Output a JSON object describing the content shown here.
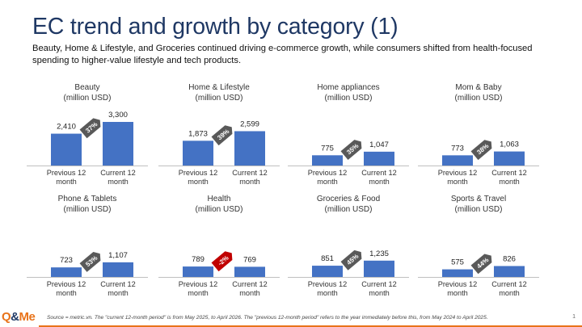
{
  "title": "EC trend and growth by category (1)",
  "subtitle": "Beauty, Home & Lifestyle, and Groceries continued driving e-commerce growth, while consumers shifted from health-focused spending to higher-value lifestyle and tech products.",
  "footer": {
    "logo_left": "Q",
    "logo_amp": "&",
    "logo_right": "Me",
    "source": "Source = metric.vn. The \"current 12-month period\" is from May 2025, to April 2026. The \"previous 12-month period\" refers to the year immediately before this, from May 2024 to April 2025.",
    "page_number": "1"
  },
  "colors": {
    "bar": "#4472c4",
    "badge": "#595959",
    "badge_negative": "#c00000",
    "title": "#1f3864",
    "accent": "#e8731a"
  },
  "chart_data": [
    {
      "type": "bar",
      "title": "Beauty\n(million USD)",
      "categories": [
        "Previous 12\nmonth",
        "Current 12\nmonth"
      ],
      "values": [
        2410,
        3300
      ],
      "labels": [
        "2,410",
        "3,300"
      ],
      "growth": "37%"
    },
    {
      "type": "bar",
      "title": "Home & Lifestyle\n(million USD)",
      "categories": [
        "Previous 12\nmonth",
        "Current 12\nmonth"
      ],
      "values": [
        1873,
        2599
      ],
      "labels": [
        "1,873",
        "2,599"
      ],
      "growth": "39%"
    },
    {
      "type": "bar",
      "title": "Home appliances\n(million USD)",
      "categories": [
        "Previous 12\nmonth",
        "Current 12\nmonth"
      ],
      "values": [
        775,
        1047
      ],
      "labels": [
        "775",
        "1,047"
      ],
      "growth": "35%"
    },
    {
      "type": "bar",
      "title": "Mom & Baby\n(million USD)",
      "categories": [
        "Previous 12\nmonth",
        "Current 12\nmonth"
      ],
      "values": [
        773,
        1063
      ],
      "labels": [
        "773",
        "1,063"
      ],
      "growth": "38%"
    },
    {
      "type": "bar",
      "title": "Phone & Tablets\n(million USD)",
      "categories": [
        "Previous 12\nmonth",
        "Current 12\nmonth"
      ],
      "values": [
        723,
        1107
      ],
      "labels": [
        "723",
        "1,107"
      ],
      "growth": "53%"
    },
    {
      "type": "bar",
      "title": "Health\n(million USD)",
      "categories": [
        "Previous 12\nmonth",
        "Current 12\nmonth"
      ],
      "values": [
        789,
        769
      ],
      "labels": [
        "789",
        "769"
      ],
      "growth": "-2%",
      "negative": true
    },
    {
      "type": "bar",
      "title": "Groceries & Food\n(million USD)",
      "categories": [
        "Previous 12\nmonth",
        "Current 12\nmonth"
      ],
      "values": [
        851,
        1235
      ],
      "labels": [
        "851",
        "1,235"
      ],
      "growth": "45%"
    },
    {
      "type": "bar",
      "title": "Sports & Travel\n(million USD)",
      "categories": [
        "Previous 12\nmonth",
        "Current 12\nmonth"
      ],
      "values": [
        575,
        826
      ],
      "labels": [
        "575",
        "826"
      ],
      "growth": "44%"
    }
  ]
}
